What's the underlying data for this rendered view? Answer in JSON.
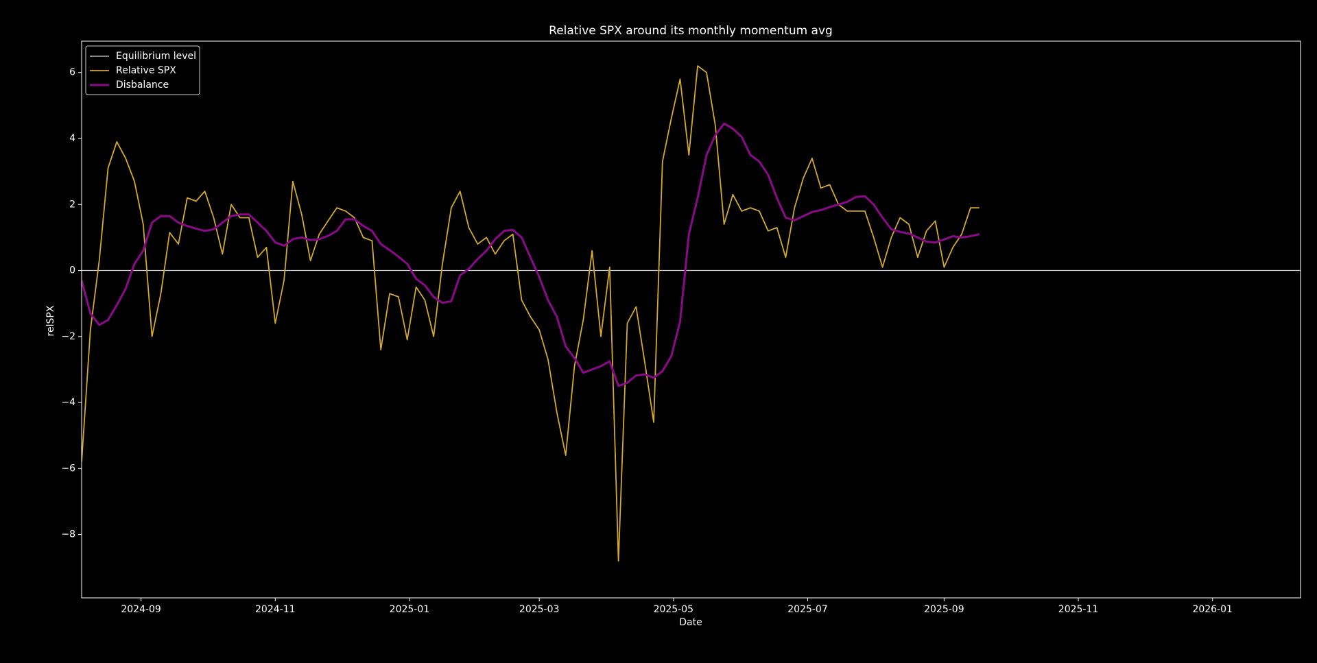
{
  "chart_data": {
    "type": "line",
    "title": "Relative SPX around its monthly momentum avg",
    "xlabel": "Date",
    "ylabel": "relSPX",
    "legend": "upper left",
    "hlines": [
      {
        "name": "Equilibrium level",
        "color": "#d0d0d0",
        "value": 0
      }
    ],
    "x": [
      "2024-08-05",
      "2024-08-09",
      "2024-08-13",
      "2024-08-17",
      "2024-08-21",
      "2024-08-25",
      "2024-08-29",
      "2024-09-02",
      "2024-09-06",
      "2024-09-10",
      "2024-09-14",
      "2024-09-18",
      "2024-09-22",
      "2024-09-26",
      "2024-09-30",
      "2024-10-04",
      "2024-10-08",
      "2024-10-12",
      "2024-10-16",
      "2024-10-20",
      "2024-10-24",
      "2024-10-28",
      "2024-11-01",
      "2024-11-05",
      "2024-11-09",
      "2024-11-13",
      "2024-11-17",
      "2024-11-21",
      "2024-11-25",
      "2024-11-29",
      "2024-12-03",
      "2024-12-07",
      "2024-12-11",
      "2024-12-15",
      "2024-12-19",
      "2024-12-23",
      "2024-12-27",
      "2024-12-31",
      "2025-01-04",
      "2025-01-08",
      "2025-01-12",
      "2025-01-16",
      "2025-01-20",
      "2025-01-24",
      "2025-01-28",
      "2025-02-01",
      "2025-02-05",
      "2025-02-09",
      "2025-02-13",
      "2025-02-17",
      "2025-02-21",
      "2025-02-25",
      "2025-03-01",
      "2025-03-05",
      "2025-03-09",
      "2025-03-13",
      "2025-03-17",
      "2025-03-21",
      "2025-03-25",
      "2025-03-29",
      "2025-04-02",
      "2025-04-06",
      "2025-04-10",
      "2025-04-14",
      "2025-04-18",
      "2025-04-22",
      "2025-04-26",
      "2025-04-30",
      "2025-05-04",
      "2025-05-08",
      "2025-05-12",
      "2025-05-16",
      "2025-05-20",
      "2025-05-24",
      "2025-05-28",
      "2025-06-01",
      "2025-06-05",
      "2025-06-09",
      "2025-06-13",
      "2025-06-17",
      "2025-06-21",
      "2025-06-25",
      "2025-06-29",
      "2025-07-03",
      "2025-07-07",
      "2025-07-11",
      "2025-07-15",
      "2025-07-19",
      "2025-07-23",
      "2025-07-27",
      "2025-07-31",
      "2025-08-04",
      "2025-08-08",
      "2025-08-12",
      "2025-08-16",
      "2025-08-20",
      "2025-08-24",
      "2025-08-28",
      "2025-09-01",
      "2025-09-05",
      "2025-09-09",
      "2025-09-13",
      "2025-09-17"
    ],
    "series": [
      {
        "name": "Relative SPX",
        "color": "#d4aa2c",
        "width": 1.8,
        "values": [
          -5.8,
          -1.8,
          0.3,
          3.1,
          3.9,
          3.4,
          2.7,
          1.4,
          -2.0,
          -0.7,
          1.15,
          0.8,
          2.2,
          2.1,
          2.4,
          1.6,
          0.5,
          2.0,
          1.6,
          1.6,
          0.4,
          0.7,
          -1.6,
          -0.3,
          2.7,
          1.7,
          0.3,
          1.1,
          1.5,
          1.9,
          1.8,
          1.6,
          1.0,
          0.9,
          -2.4,
          -0.7,
          -0.8,
          -2.1,
          -0.5,
          -0.9,
          -2.0,
          0.2,
          1.9,
          2.4,
          1.3,
          0.8,
          1.0,
          0.5,
          0.9,
          1.1,
          -0.9,
          -1.4,
          -1.8,
          -2.7,
          -4.3,
          -5.6,
          -2.9,
          -1.5,
          0.6,
          -2.0,
          0.1,
          -8.8,
          -1.6,
          -1.1,
          -2.8,
          -4.6,
          3.3,
          4.6,
          5.8,
          3.5,
          6.2,
          6.0,
          4.4,
          1.4,
          2.3,
          1.8,
          1.9,
          1.8,
          1.2,
          1.3,
          0.4,
          1.9,
          2.8,
          3.4,
          2.5,
          2.6,
          2.0,
          1.8,
          1.8,
          1.8,
          1.0,
          0.1,
          1.0,
          1.6,
          1.4,
          0.4,
          1.2,
          1.5,
          0.1,
          0.7,
          1.1,
          1.9,
          1.9
        ]
      },
      {
        "name": "Disbalance",
        "color": "#8a0a8a",
        "width": 3,
        "values": [
          -0.3,
          -1.3,
          -1.65,
          -1.5,
          -1.05,
          -0.55,
          0.2,
          0.6,
          1.45,
          1.65,
          1.65,
          1.45,
          1.35,
          1.27,
          1.2,
          1.25,
          1.45,
          1.65,
          1.7,
          1.7,
          1.45,
          1.2,
          0.85,
          0.75,
          0.95,
          1.0,
          0.92,
          0.95,
          1.05,
          1.2,
          1.55,
          1.55,
          1.35,
          1.2,
          0.8,
          0.62,
          0.42,
          0.2,
          -0.25,
          -0.45,
          -0.8,
          -0.98,
          -0.93,
          -0.15,
          0.05,
          0.35,
          0.6,
          0.95,
          1.2,
          1.23,
          1.0,
          0.4,
          -0.2,
          -0.9,
          -1.4,
          -2.3,
          -2.65,
          -3.1,
          -3.0,
          -2.9,
          -2.75,
          -3.5,
          -3.4,
          -3.18,
          -3.15,
          -3.25,
          -3.05,
          -2.6,
          -1.55,
          1.1,
          2.2,
          3.5,
          4.1,
          4.45,
          4.3,
          4.05,
          3.5,
          3.3,
          2.9,
          2.2,
          1.6,
          1.52,
          1.65,
          1.77,
          1.83,
          1.92,
          2.0,
          2.08,
          2.23,
          2.25,
          2.0,
          1.6,
          1.25,
          1.17,
          1.12,
          1.0,
          0.87,
          0.85,
          0.94,
          1.04,
          1.0,
          1.04,
          1.1
        ]
      }
    ],
    "xlim": [
      "2024-08-05",
      "2026-02-10"
    ],
    "xticks": [
      {
        "value": "2024-09-01",
        "label": "2024-09"
      },
      {
        "value": "2024-11-01",
        "label": "2024-11"
      },
      {
        "value": "2025-01-01",
        "label": "2025-01"
      },
      {
        "value": "2025-03-01",
        "label": "2025-03"
      },
      {
        "value": "2025-05-01",
        "label": "2025-05"
      },
      {
        "value": "2025-07-01",
        "label": "2025-07"
      },
      {
        "value": "2025-09-01",
        "label": "2025-09"
      },
      {
        "value": "2025-11-01",
        "label": "2025-11"
      },
      {
        "value": "2026-01-01",
        "label": "2026-01"
      }
    ],
    "ylim": [
      -9.92,
      6.95
    ],
    "yticks": [
      {
        "value": -8,
        "label": "−8"
      },
      {
        "value": -6,
        "label": "−6"
      },
      {
        "value": -4,
        "label": "−4"
      },
      {
        "value": -2,
        "label": "−2"
      },
      0,
      2,
      4,
      6
    ]
  }
}
